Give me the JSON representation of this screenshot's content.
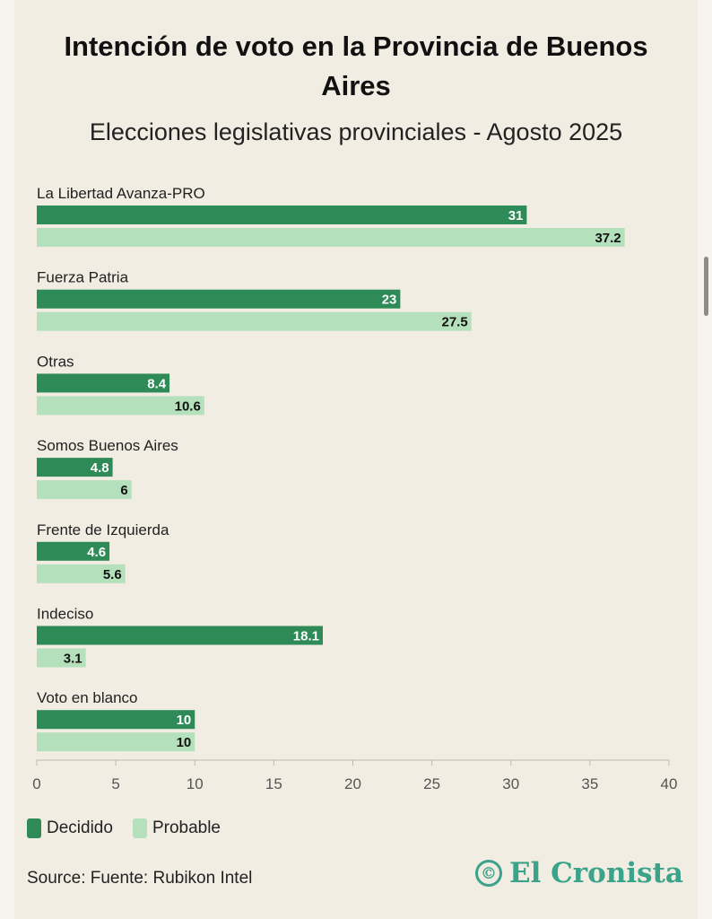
{
  "title": "Intención de voto en la Provincia de Buenos Aires",
  "subtitle": "Elecciones legislativas provinciales - Agosto 2025",
  "source": "Source: Fuente: Rubikon Intel",
  "logo": "El Cronista",
  "logo_mark": "©",
  "colors": {
    "decidido": "#2e8b57",
    "probable": "#b4e0bb",
    "background": "#f2ede3"
  },
  "chart_data": {
    "type": "bar",
    "orientation": "horizontal",
    "categories": [
      "La Libertad Avanza-PRO",
      "Fuerza Patria",
      "Otras",
      "Somos Buenos Aires",
      "Frente de Izquierda",
      "Indeciso",
      "Voto en blanco"
    ],
    "series": [
      {
        "name": "Decidido",
        "values": [
          31,
          23,
          8.4,
          4.8,
          4.6,
          18.1,
          10
        ]
      },
      {
        "name": "Probable",
        "values": [
          37.2,
          27.5,
          10.6,
          6,
          5.6,
          3.1,
          10
        ]
      }
    ],
    "xlim": [
      0,
      40
    ],
    "xticks": [
      0,
      5,
      10,
      15,
      20,
      25,
      30,
      35,
      40
    ],
    "legend": "bottom-left",
    "grid": false
  }
}
